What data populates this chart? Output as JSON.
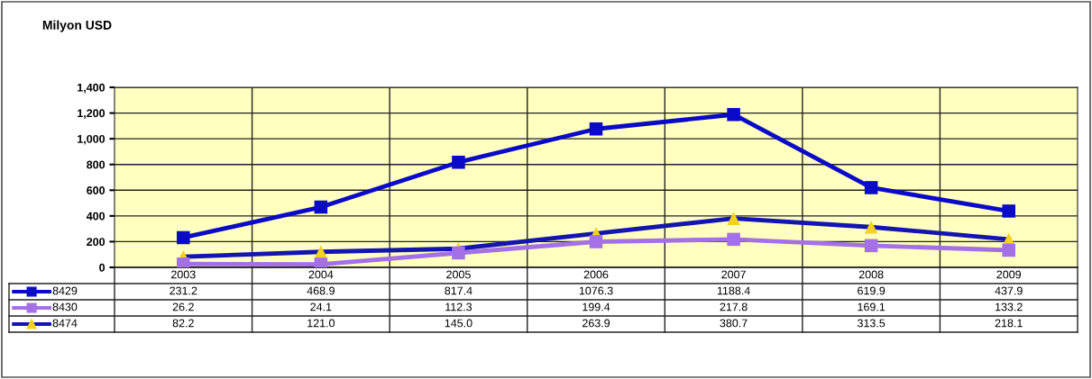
{
  "chart_data": {
    "type": "line",
    "title": "Milyon USD",
    "categories": [
      "2003",
      "2004",
      "2005",
      "2006",
      "2007",
      "2008",
      "2009"
    ],
    "series": [
      {
        "name": "8429",
        "color": "#0a0ac8",
        "marker": "square",
        "values": [
          231.2,
          468.9,
          817.4,
          1076.3,
          1188.4,
          619.9,
          437.9
        ],
        "value_labels": [
          "231.2",
          "468.9",
          "817.4",
          "1076.3",
          "1188.4",
          "619.9",
          "437.9"
        ]
      },
      {
        "name": "8430",
        "color": "#a470e8",
        "marker": "square",
        "values": [
          26.2,
          24.1,
          112.3,
          199.4,
          217.8,
          169.1,
          133.2
        ],
        "value_labels": [
          "26.2",
          "24.1",
          "112.3",
          "199.4",
          "217.8",
          "169.1",
          "133.2"
        ]
      },
      {
        "name": "8474",
        "color": "#1414b0",
        "marker": "triangle",
        "colors": [
          "#f2d21e",
          "#f2d21e",
          "#f2d21e",
          "#f2d21e",
          "#f2d21e",
          "#f2d21e",
          "#f2d21e"
        ],
        "values": [
          82.2,
          121.0,
          145.0,
          263.9,
          380.7,
          313.5,
          218.1
        ],
        "value_labels": [
          "82.2",
          "121.0",
          "145.0",
          "263.9",
          "380.7",
          "313.5",
          "218.1"
        ]
      }
    ],
    "ylim": [
      0,
      1400
    ],
    "yticks": [
      {
        "value": 0,
        "label": "0"
      },
      {
        "value": 200,
        "label": "200"
      },
      {
        "value": 400,
        "label": "400"
      },
      {
        "value": 600,
        "label": "600"
      },
      {
        "value": 800,
        "label": "800"
      },
      {
        "value": 1000,
        "label": "1,000"
      },
      {
        "value": 1200,
        "label": "1,200"
      },
      {
        "value": 1400,
        "label": "1,400"
      }
    ],
    "legend": "bottom left",
    "grid": true,
    "line_style": "solid"
  }
}
